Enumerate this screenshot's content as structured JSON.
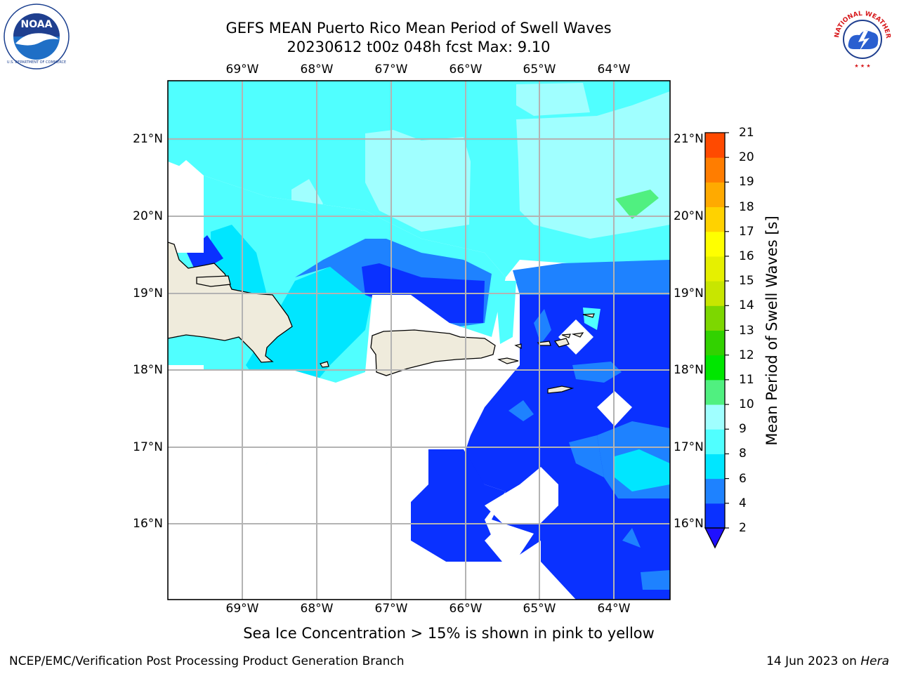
{
  "header": {
    "title_line1": "GEFS MEAN Puerto Rico Mean Period of Swell Waves",
    "title_line2": "20230612 t00z 048h fcst   Max: 9.10"
  },
  "logos": {
    "left": {
      "text": "NOAA",
      "ring_text": "NATIONAL OCEANIC AND ATMOSPHERIC ADMINISTRATION",
      "bottom_text": "U.S. DEPARTMENT OF COMMERCE",
      "icon": "noaa-logo"
    },
    "right": {
      "ring_text": "NATIONAL WEATHER SERVICE",
      "icon": "nws-logo"
    }
  },
  "map": {
    "lon_ticks": [
      "69°W",
      "68°W",
      "67°W",
      "66°W",
      "65°W",
      "64°W"
    ],
    "lat_ticks": [
      "21°N",
      "20°N",
      "19°N",
      "18°N",
      "17°N",
      "16°N"
    ],
    "gridlines": true,
    "land_color": "#efebdc",
    "ocean_missing_color": "#ffffff"
  },
  "colorbar": {
    "title": "Mean Period of Swell Waves [s]",
    "labels": [
      "2",
      "4",
      "6",
      "8",
      "9",
      "10",
      "11",
      "12",
      "13",
      "14",
      "15",
      "16",
      "17",
      "18",
      "19",
      "20",
      "21"
    ],
    "colors": [
      "#0a31ff",
      "#1e82ff",
      "#00e6ff",
      "#50ffff",
      "#a0ffff",
      "#50f080",
      "#00e600",
      "#32d200",
      "#7dd700",
      "#c8e600",
      "#e6f000",
      "#ffff00",
      "#ffd200",
      "#ffaa00",
      "#ff7d00",
      "#ff4a00",
      "#ff1400"
    ],
    "under_color": "#1f10ff"
  },
  "footer": {
    "note": "Sea Ice Concentration > 15% is shown in pink to yellow",
    "credit": "NCEP/EMC/Verification Post Processing Product Generation Branch",
    "date": "14 Jun 2023 on ",
    "host": "Hera"
  }
}
